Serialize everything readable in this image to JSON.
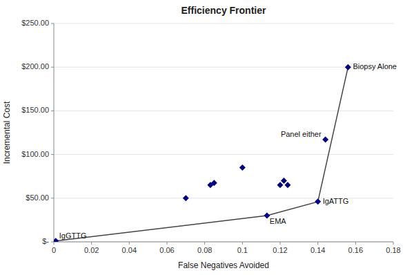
{
  "chart_data": {
    "type": "scatter",
    "title": "Efficiency Frontier",
    "x_label": "False Negatives Avoided",
    "y_label": "Incremental Cost",
    "series": [
      {
        "type": "line",
        "color": "#444444",
        "marker": "diamond",
        "colors": [
          "#00008B",
          "#00008B",
          "#00008B",
          "#00008B"
        ],
        "x": [
          0.001,
          0.113,
          0.14,
          0.156
        ],
        "values": [
          1.0,
          30.0,
          46.0,
          200.0
        ]
      },
      {
        "type": "scatter",
        "color": "#00008B",
        "marker": "diamond",
        "x": [
          0.07,
          0.083,
          0.085,
          0.1,
          0.12,
          0.122,
          0.124,
          0.144
        ],
        "values": [
          50.0,
          65.0,
          67.5,
          85.0,
          65.0,
          70.0,
          65.0,
          117.0
        ]
      }
    ],
    "annotations": [
      {
        "text": "IgGTTG",
        "x": 0.001,
        "y": 1.0
      },
      {
        "text": "EMA",
        "x": 0.113,
        "y": 30.0
      },
      {
        "text": "IgATTG",
        "x": 0.14,
        "y": 46.0
      },
      {
        "text": "Biopsy Alone",
        "x": 0.156,
        "y": 200.0
      },
      {
        "text": "Panel either",
        "x": 0.144,
        "y": 117.0
      }
    ],
    "xlim": [
      0,
      0.18
    ],
    "ylim": [
      0,
      250
    ],
    "xticks": [
      0,
      0.02,
      0.04,
      0.06,
      0.08,
      0.1,
      0.12,
      0.14,
      0.16,
      0.18
    ],
    "yticks": [
      {
        "value": 0,
        "label": "$-"
      },
      {
        "value": 50,
        "label": "$50.00"
      },
      {
        "value": 100,
        "label": "$100.00"
      },
      {
        "value": 150,
        "label": "$150.00"
      },
      {
        "value": 200,
        "label": "$200.00"
      },
      {
        "value": 250,
        "label": "$250.00"
      }
    ],
    "grid": true
  }
}
